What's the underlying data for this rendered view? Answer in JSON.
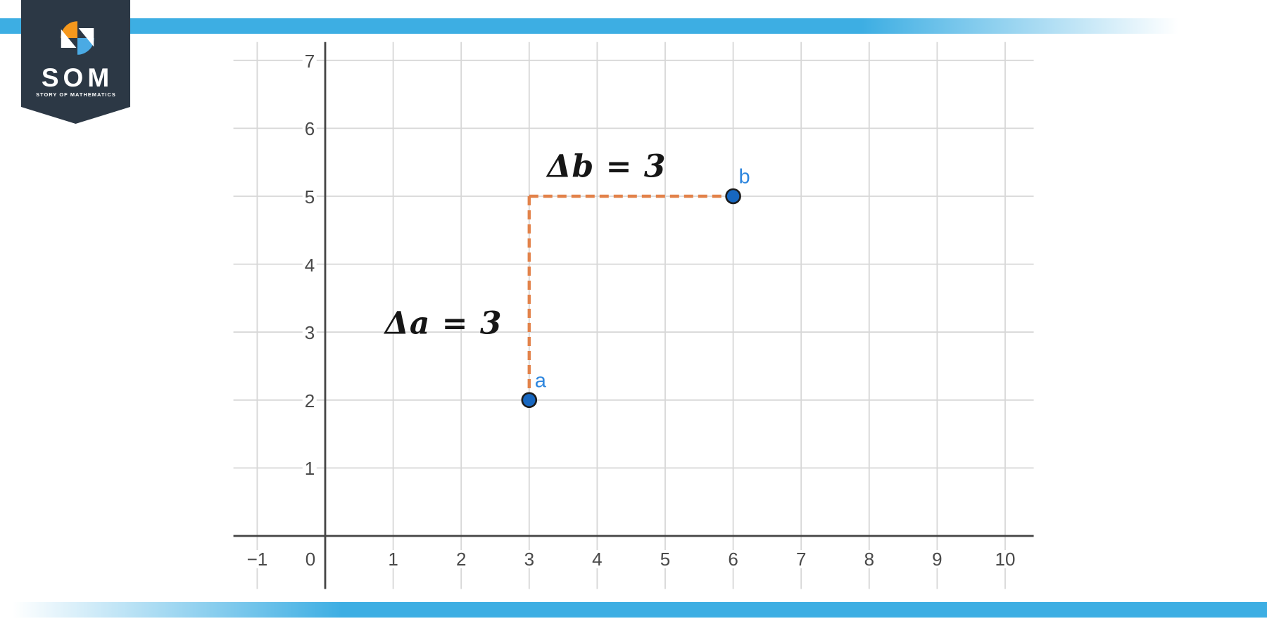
{
  "logo": {
    "title": "SOM",
    "tagline": "STORY OF MATHEMATICS"
  },
  "chart_data": {
    "type": "scatter",
    "title": "",
    "xlabel": "",
    "ylabel": "",
    "points": [
      {
        "label": "a",
        "x": 3,
        "y": 2
      },
      {
        "label": "b",
        "x": 6,
        "y": 5
      }
    ],
    "dashed_segments": [
      {
        "from": [
          3,
          5
        ],
        "to": [
          3,
          2
        ]
      },
      {
        "from": [
          3,
          5
        ],
        "to": [
          6,
          5
        ]
      }
    ],
    "annotations": [
      {
        "text": "Δa = 3",
        "x": 1.74,
        "y": 3.13
      },
      {
        "text": "Δb = 3",
        "x": 4.14,
        "y": 5.43
      }
    ],
    "x_ticks": [
      -1,
      0,
      1,
      2,
      3,
      4,
      5,
      6,
      7,
      8,
      9,
      10
    ],
    "y_ticks": [
      1,
      2,
      3,
      4,
      5,
      6,
      7
    ],
    "xlim": [
      -1.35,
      10.42
    ],
    "ylim": [
      -0.78,
      7.27
    ],
    "grid": true,
    "legend": false,
    "colors": {
      "point_fill": "#1767c0",
      "point_stroke": "#1c1c1c",
      "point_label": "#2e86de",
      "dash": "#e2824a",
      "grid_line": "#d7d7d7",
      "axis_line": "#454545",
      "tick_label": "#4a4a4a",
      "annotation": "#161616",
      "stripe": "#3daee3",
      "banner": "#2c3845",
      "logo_orange": "#f6981c",
      "logo_blue": "#4aaae4"
    }
  }
}
